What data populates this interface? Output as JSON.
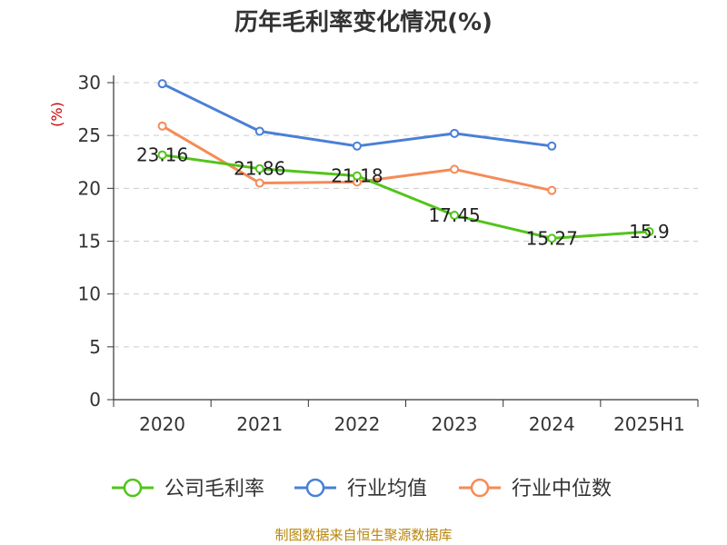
{
  "chart_data": {
    "type": "line",
    "title": "历年毛利率变化情况(%)",
    "unit_label": "(%)",
    "categories": [
      "2020",
      "2021",
      "2022",
      "2023",
      "2024",
      "2025H1"
    ],
    "ylim": [
      0,
      30
    ],
    "yticks": [
      "0",
      "5",
      "10",
      "15",
      "20",
      "25",
      "30"
    ],
    "grid": "horizontal-dashed",
    "legend_position": "bottom",
    "series": [
      {
        "name": "公司毛利率",
        "color": "#52c41a",
        "values": [
          23.16,
          21.86,
          21.18,
          17.45,
          15.27,
          15.9
        ],
        "labels": [
          "23.16",
          "21.86",
          "21.18",
          "17.45",
          "15.27",
          "15.9"
        ]
      },
      {
        "name": "行业均值",
        "color": "#4a7fd6",
        "values": [
          29.9,
          25.4,
          24.0,
          25.2,
          24.0,
          null
        ]
      },
      {
        "name": "行业中位数",
        "color": "#f58b57",
        "values": [
          25.9,
          20.5,
          20.6,
          21.8,
          19.8,
          null
        ]
      }
    ],
    "source": "制图数据来自恒生聚源数据库"
  }
}
